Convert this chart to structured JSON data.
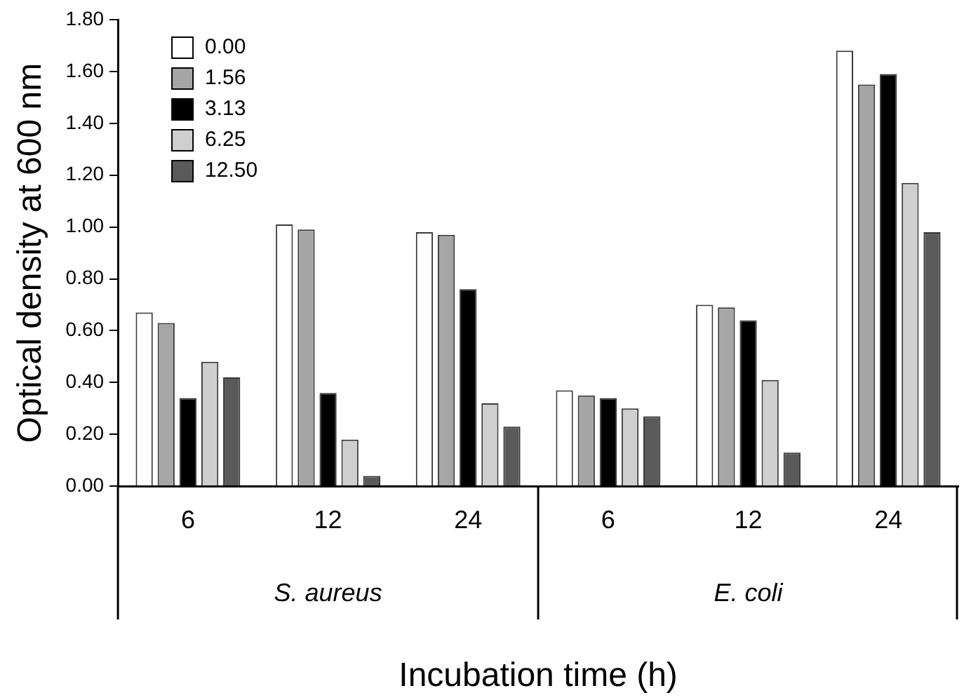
{
  "chart_data": {
    "type": "bar",
    "xlabel": "Incubation time (h)",
    "ylabel": "Optical density at 600 nm",
    "categories": [
      "6",
      "12",
      "24",
      "6",
      "12",
      "24"
    ],
    "annotations": [
      "S. aureus",
      "E. coli"
    ],
    "series": [
      {
        "name": "0.00",
        "color": "#ffffff",
        "values": [
          0.67,
          1.01,
          0.98,
          0.37,
          0.7,
          1.68
        ]
      },
      {
        "name": "1.56",
        "color": "#a6a6a6",
        "values": [
          0.63,
          0.99,
          0.97,
          0.35,
          0.69,
          1.55
        ]
      },
      {
        "name": "3.13",
        "color": "#000000",
        "values": [
          0.34,
          0.36,
          0.76,
          0.34,
          0.64,
          1.59
        ]
      },
      {
        "name": "6.25",
        "color": "#cfcfcf",
        "values": [
          0.48,
          0.18,
          0.32,
          0.3,
          0.41,
          1.17
        ]
      },
      {
        "name": "12.50",
        "color": "#5a5a5a",
        "values": [
          0.42,
          0.04,
          0.23,
          0.27,
          0.13,
          0.98
        ]
      }
    ],
    "ylim": [
      0,
      1.8
    ],
    "yticks": [
      {
        "value": 0,
        "label": "0.00"
      },
      {
        "value": 0.2,
        "label": "0.20"
      },
      {
        "value": 0.4,
        "label": "0.40"
      },
      {
        "value": 0.6,
        "label": "0.60"
      },
      {
        "value": 0.8,
        "label": "0.80"
      },
      {
        "value": 1.0,
        "label": "1.00"
      },
      {
        "value": 1.2,
        "label": "1.20"
      },
      {
        "value": 1.4,
        "label": "1.40"
      },
      {
        "value": 1.6,
        "label": "1.60"
      },
      {
        "value": 1.8,
        "label": "1.80"
      }
    ],
    "grid": false,
    "legend": "top left"
  }
}
